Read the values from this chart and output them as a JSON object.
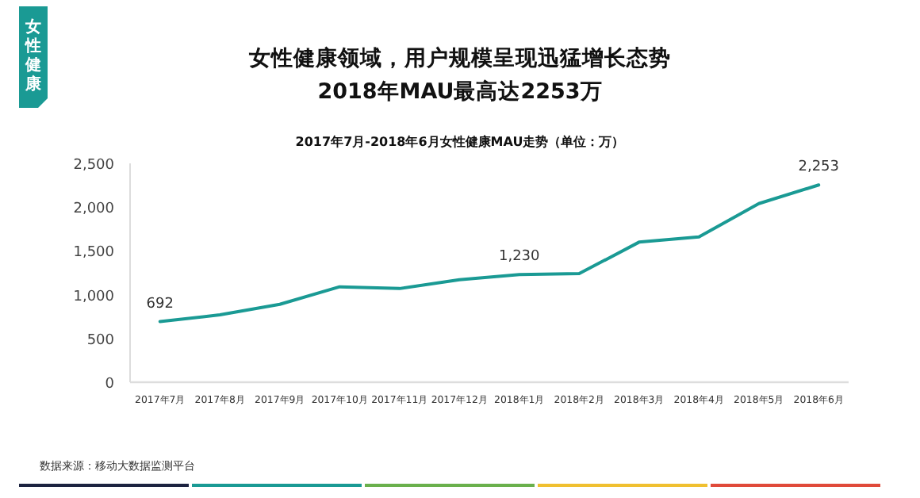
{
  "chart_data": {
    "type": "line",
    "title": "女性健康领域，用户规模呈现迅猛增长态势",
    "subtitle": "2018年MAU最高达2253万",
    "annotations": [
      "女性健康",
      "2017年7月-2018年6月女性健康MAU走势（单位：万）",
      "数据来源：移动大数据监测平台"
    ],
    "categories": [
      "2017年7月",
      "2017年8月",
      "2017年9月",
      "2017年10月",
      "2017年11月",
      "2017年12月",
      "2018年1月",
      "2018年2月",
      "2018年3月",
      "2018年4月",
      "2018年5月",
      "2018年6月"
    ],
    "series": [
      {
        "color": "#1a9a94",
        "values": [
          692,
          770,
          890,
          1090,
          1070,
          1170,
          1230,
          1240,
          1600,
          1660,
          2040,
          2253
        ],
        "value_labels": [
          "692",
          null,
          null,
          null,
          null,
          null,
          "1,230",
          null,
          null,
          null,
          null,
          "2,253"
        ]
      }
    ],
    "ylim": [
      0,
      2500
    ],
    "yticks": [
      {
        "value": 0,
        "label": "0"
      },
      {
        "value": 500,
        "label": "500"
      },
      {
        "value": 1000,
        "label": "1,000"
      },
      {
        "value": 1500,
        "label": "1,500"
      },
      {
        "value": 2000,
        "label": "2,000"
      },
      {
        "value": 2500,
        "label": "2,500"
      }
    ]
  }
}
